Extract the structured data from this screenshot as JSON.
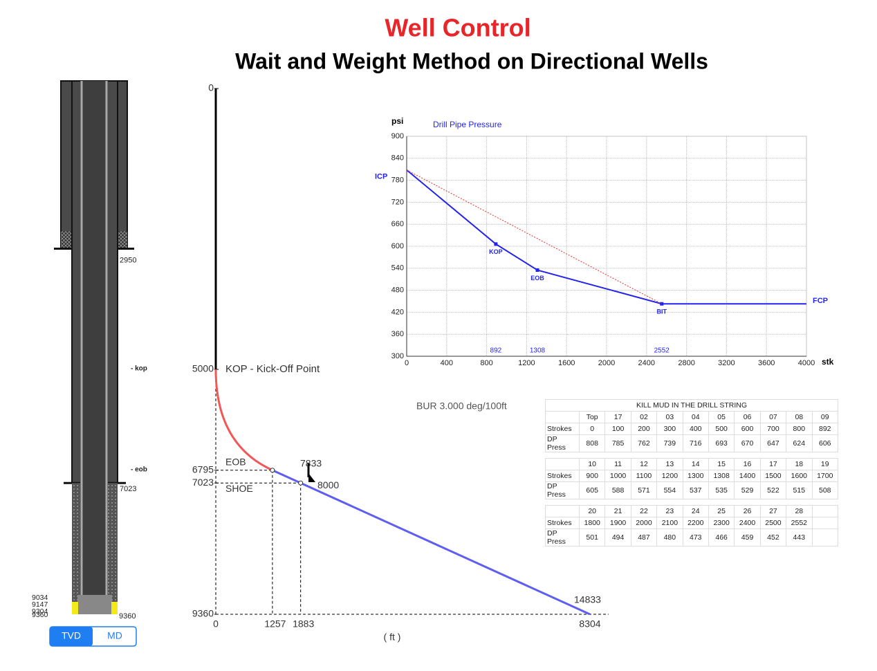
{
  "header": {
    "title": "Well Control",
    "subtitle": "Wait and Weight Method on Directional Wells"
  },
  "schematic": {
    "casing_depths": [
      2950,
      7023
    ],
    "td": 9360,
    "bottom_labels": [
      9034,
      9147,
      9304,
      9360
    ],
    "markers": [
      "- kop",
      "- eob"
    ],
    "tabs": [
      "TVD",
      "MD"
    ]
  },
  "chart_data": [
    {
      "type": "line",
      "title": "Drill Pipe Pressure",
      "y_label": "psi",
      "x_label": "stk",
      "xlim": [
        0,
        4000
      ],
      "xticks": [
        0,
        400,
        800,
        1200,
        1600,
        2000,
        2400,
        2800,
        3200,
        3600,
        4000
      ],
      "ylim": [
        300,
        900
      ],
      "yticks": [
        300,
        360,
        420,
        480,
        540,
        600,
        660,
        720,
        780,
        840,
        900
      ],
      "grid": true,
      "series": [
        {
          "x": [
            0,
            892,
            1308,
            2552,
            4000
          ],
          "values": [
            808,
            606,
            535,
            443,
            443
          ],
          "color": "#2323ee",
          "point_labels": [
            null,
            "KOP",
            "EOB",
            "BIT",
            null
          ]
        },
        {
          "x": [
            0,
            2552
          ],
          "values": [
            808,
            443
          ],
          "color": "#ee2a2a",
          "dash": true
        }
      ],
      "annotations": [
        {
          "text": "ICP",
          "y": 808
        },
        {
          "text": "FCP",
          "y": 443
        }
      ]
    },
    {
      "type": "line",
      "x_label": "( ft )",
      "xlim": [
        0,
        8304
      ],
      "ylim": [
        0,
        9360
      ],
      "y_inverted": true,
      "xticks": [
        0,
        1257,
        1883,
        8304
      ],
      "yticks": [
        0,
        5000,
        6795,
        7023,
        9360
      ],
      "series": [
        {
          "x": [
            0,
            0
          ],
          "values": [
            0,
            5000
          ],
          "color": "#000000"
        },
        {
          "x": [
            0,
            1257
          ],
          "values": [
            5000,
            6795
          ],
          "color": "#f25757",
          "curve": true
        },
        {
          "x": [
            1257,
            8304
          ],
          "values": [
            6795,
            9360
          ],
          "color": "#5e5ef2"
        }
      ],
      "annotations": [
        {
          "text": "KOP - Kick-Off Point",
          "x": 0,
          "y": 5000
        },
        {
          "text": "EOB",
          "x": 1257,
          "y": 6795,
          "md": 7833
        },
        {
          "text": "SHOE",
          "x": 1883,
          "y": 7023,
          "md": 8000
        },
        {
          "text": "BUR 3.000 deg/100ft"
        }
      ],
      "td": {
        "x": 8304,
        "y": 9360,
        "md": 14833
      }
    }
  ],
  "table": {
    "title": "KILL MUD IN THE DRILL STRING",
    "row_labels": [
      "Strokes",
      "DP Press"
    ],
    "blocks": [
      {
        "headers": [
          "Top",
          "17",
          "02",
          "03",
          "04",
          "05",
          "06",
          "07",
          "08",
          "09"
        ],
        "strokes": [
          0,
          100,
          200,
          300,
          400,
          500,
          600,
          700,
          800,
          892
        ],
        "press": [
          808,
          785,
          762,
          739,
          716,
          693,
          670,
          647,
          624,
          606
        ]
      },
      {
        "headers": [
          "10",
          "11",
          "12",
          "13",
          "14",
          "15",
          "16",
          "17",
          "18",
          "19"
        ],
        "strokes": [
          900,
          1000,
          1100,
          1200,
          1300,
          1308,
          1400,
          1500,
          1600,
          1700
        ],
        "press": [
          605,
          588,
          571,
          554,
          537,
          535,
          529,
          522,
          515,
          508
        ]
      },
      {
        "headers": [
          "20",
          "21",
          "22",
          "23",
          "24",
          "25",
          "26",
          "27",
          "28"
        ],
        "strokes": [
          1800,
          1900,
          2000,
          2100,
          2200,
          2300,
          2400,
          2500,
          2552
        ],
        "press": [
          501,
          494,
          487,
          480,
          473,
          466,
          459,
          452,
          443
        ]
      }
    ]
  }
}
